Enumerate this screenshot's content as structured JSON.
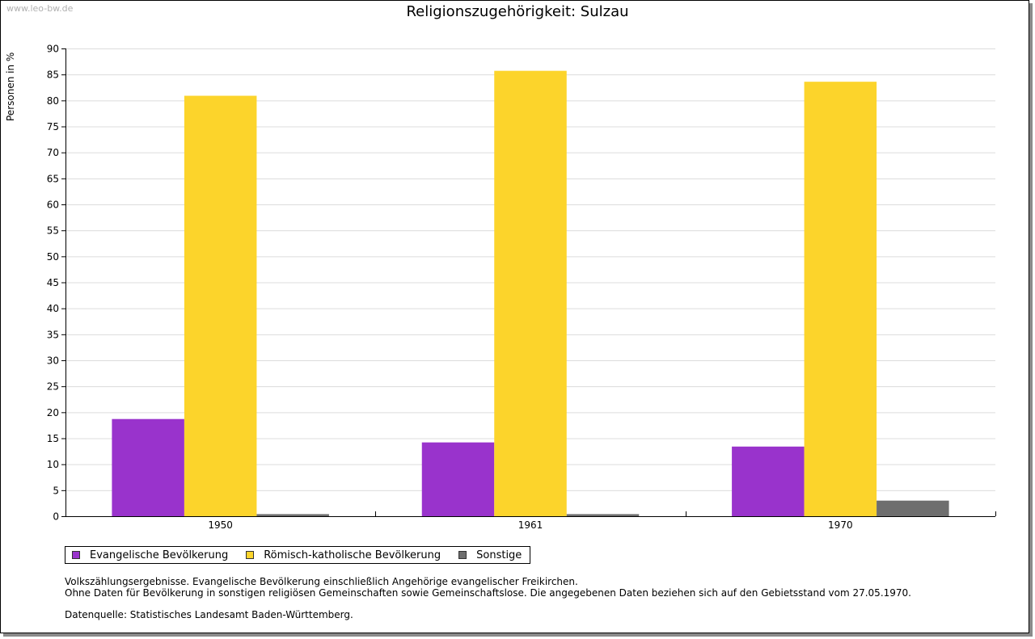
{
  "watermark": "www.leo-bw.de",
  "chart_data": {
    "type": "bar",
    "title": "Religionszugehörigkeit: Sulzau",
    "xlabel": "",
    "ylabel": "Personen in %",
    "ylim": [
      0,
      90
    ],
    "yticks": [
      0,
      5,
      10,
      15,
      20,
      25,
      30,
      35,
      40,
      45,
      50,
      55,
      60,
      65,
      70,
      75,
      80,
      85,
      90
    ],
    "grid": true,
    "legend_position": "bottom-left",
    "categories": [
      "1950",
      "1961",
      "1970"
    ],
    "series": [
      {
        "name": "Evangelische Bevölkerung",
        "color": "#9933cc",
        "values": [
          18.7,
          14.2,
          13.4
        ]
      },
      {
        "name": "Römisch-katholische Bevölkerung",
        "color": "#fcd42b",
        "values": [
          80.9,
          85.7,
          83.6
        ]
      },
      {
        "name": "Sonstige",
        "color": "#6e6e6e",
        "values": [
          0.4,
          0.4,
          3.0
        ]
      }
    ]
  },
  "notes": {
    "line1": "Volkszählungsergebnisse. Evangelische Bevölkerung einschließlich Angehörige evangelischer Freikirchen.",
    "line2": "Ohne Daten für Bevölkerung in sonstigen religiösen Gemeinschaften sowie Gemeinschaftslose. Die angegebenen Daten beziehen sich auf den Gebietsstand vom 27.05.1970.",
    "source": "Datenquelle: Statistisches Landesamt Baden-Württemberg."
  }
}
